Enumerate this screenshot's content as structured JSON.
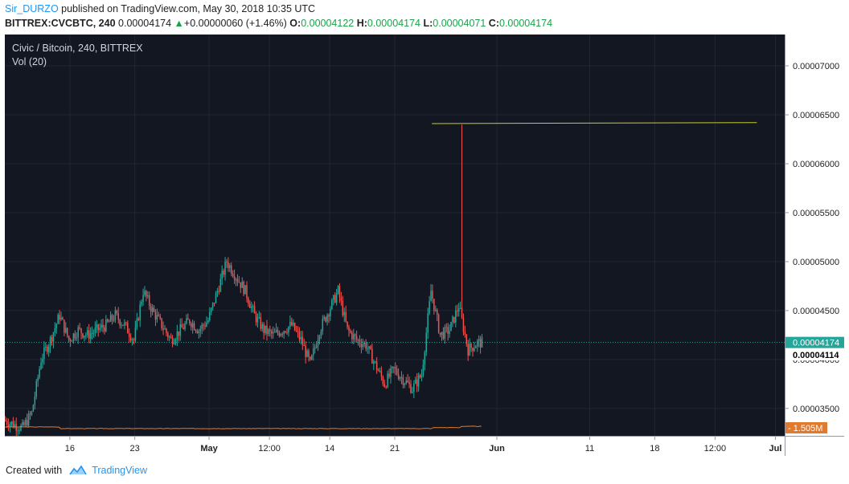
{
  "header": {
    "author": "Sir_DURZO",
    "published_text": "published on TradingView.com, May 30, 2018 10:35 UTC",
    "symbol": "BITTREX:CVCBTC, 240",
    "last_price": "0.00004174",
    "change_arrow": "▲",
    "change": "+0.00000060 (+1.46%)",
    "open_label": "O:",
    "open": "0.00004122",
    "high_label": "H:",
    "high": "0.00004174",
    "low_label": "L:",
    "low": "0.00004071",
    "close_label": "C:",
    "close": "0.00004174"
  },
  "legend": {
    "title": "Civic / Bitcoin, 240, BITTREX",
    "volume": "Vol (20)"
  },
  "colors": {
    "background": "#131722",
    "grid": "#232632",
    "up": "#26a69a",
    "down": "#ef5350",
    "hline": "#c9cc2f",
    "volume_line": "#e07a2f",
    "last_price_tag": "#26a69a",
    "crosshair_tag": "#ffffff",
    "volume_tag": "#e07a2f"
  },
  "price_tags": {
    "last": "0.00004174",
    "crosshair": "0.00004114",
    "volume": "1.505M"
  },
  "chart_data": {
    "type": "candlestick",
    "title": "Civic / Bitcoin, 240, BITTREX",
    "y_ticks": [
      "0.00007000",
      "0.00006500",
      "0.00006000",
      "0.00005500",
      "0.00005000",
      "0.00004500",
      "0.00004000",
      "0.00003500"
    ],
    "y_tick_values": [
      7e-05,
      6.5e-05,
      6e-05,
      5.5e-05,
      5e-05,
      4.5e-05,
      4e-05,
      3.5e-05
    ],
    "x_ticks": [
      "16",
      "23",
      "May",
      "12:00",
      "14",
      "21",
      "Jun",
      "11",
      "18",
      "12:00",
      "Jul"
    ],
    "x_tick_dates": [
      "2018-04-16",
      "2018-04-23",
      "2018-05-01",
      "2018-05-07T12:00",
      "2018-05-14",
      "2018-05-21",
      "2018-06-01",
      "2018-06-11",
      "2018-06-18",
      "2018-06-24T12:00",
      "2018-07-01"
    ],
    "date_range": [
      "2018-04-09",
      "2018-07-02"
    ],
    "horizontal_line": {
      "from": "2018-05-25",
      "to": "2018-06-29",
      "price_start": 6.41e-05,
      "price_end": 6.42e-05
    },
    "spike": {
      "date": "2018-05-28",
      "high": 6.4e-05
    },
    "price_path": [
      [
        "2018-04-09",
        3.38e-05
      ],
      [
        "2018-04-11",
        3.3e-05
      ],
      [
        "2018-04-12",
        3.45e-05
      ],
      [
        "2018-04-13",
        4e-05
      ],
      [
        "2018-04-14",
        4.2e-05
      ],
      [
        "2018-04-15",
        4.45e-05
      ],
      [
        "2018-04-16",
        4.2e-05
      ],
      [
        "2018-04-17",
        4.3e-05
      ],
      [
        "2018-04-18",
        4.25e-05
      ],
      [
        "2018-04-19",
        4.3e-05
      ],
      [
        "2018-04-20",
        4.35e-05
      ],
      [
        "2018-04-21",
        4.45e-05
      ],
      [
        "2018-04-22",
        4.35e-05
      ],
      [
        "2018-04-23",
        4.2e-05
      ],
      [
        "2018-04-24",
        4.7e-05
      ],
      [
        "2018-04-25",
        4.5e-05
      ],
      [
        "2018-04-26",
        4.35e-05
      ],
      [
        "2018-04-27",
        4.2e-05
      ],
      [
        "2018-04-28",
        4.3e-05
      ],
      [
        "2018-04-29",
        4.4e-05
      ],
      [
        "2018-04-30",
        4.3e-05
      ],
      [
        "2018-05-01",
        4.4e-05
      ],
      [
        "2018-05-02",
        4.7e-05
      ],
      [
        "2018-05-03",
        5e-05
      ],
      [
        "2018-05-04",
        4.85e-05
      ],
      [
        "2018-05-05",
        4.7e-05
      ],
      [
        "2018-05-06",
        4.45e-05
      ],
      [
        "2018-05-07",
        4.3e-05
      ],
      [
        "2018-05-08",
        4.25e-05
      ],
      [
        "2018-05-09",
        4.3e-05
      ],
      [
        "2018-05-10",
        4.35e-05
      ],
      [
        "2018-05-11",
        4.2e-05
      ],
      [
        "2018-05-12",
        3.95e-05
      ],
      [
        "2018-05-13",
        4.3e-05
      ],
      [
        "2018-05-14",
        4.5e-05
      ],
      [
        "2018-05-15",
        4.7e-05
      ],
      [
        "2018-05-16",
        4.3e-05
      ],
      [
        "2018-05-17",
        4.2e-05
      ],
      [
        "2018-05-18",
        4.15e-05
      ],
      [
        "2018-05-19",
        3.95e-05
      ],
      [
        "2018-05-20",
        3.75e-05
      ],
      [
        "2018-05-21",
        3.9e-05
      ],
      [
        "2018-05-22",
        3.8e-05
      ],
      [
        "2018-05-23",
        3.7e-05
      ],
      [
        "2018-05-24",
        3.85e-05
      ],
      [
        "2018-05-25",
        4.7e-05
      ],
      [
        "2018-05-26",
        4.25e-05
      ],
      [
        "2018-05-27",
        4.3e-05
      ],
      [
        "2018-05-28",
        4.55e-05
      ],
      [
        "2018-05-29",
        4.1e-05
      ],
      [
        "2018-05-30",
        4.17e-05
      ]
    ],
    "volume_label": "Vol (20)",
    "volume_last": "1.505M"
  },
  "footer": {
    "created_with": "Created with",
    "brand": "TradingView"
  }
}
